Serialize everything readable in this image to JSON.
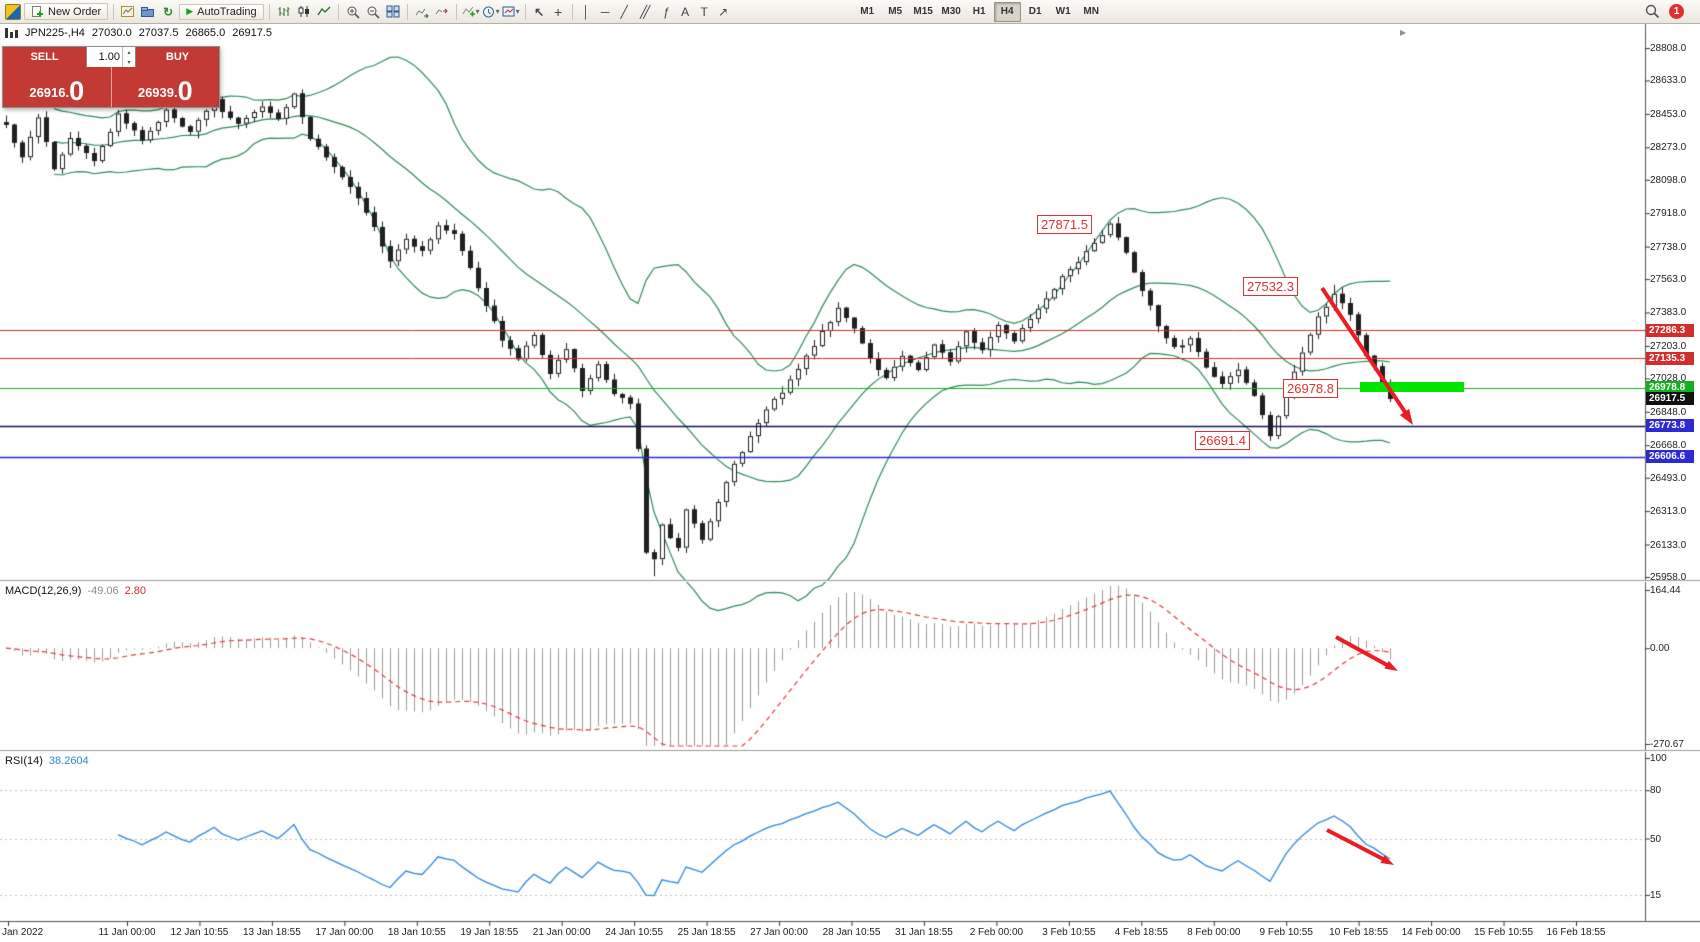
{
  "toolbar": {
    "new_order": "New Order",
    "autotrading": "AutoTrading",
    "timeframes": [
      "M1",
      "M5",
      "M15",
      "M30",
      "H1",
      "H4",
      "D1",
      "W1",
      "MN"
    ],
    "active_timeframe": "H4",
    "notification_count": "1"
  },
  "icons": {
    "play": "▶",
    "dropdown": "▾",
    "cursor": "↖",
    "crosshair": "+",
    "vertical_line": "│",
    "horizontal_line": "─",
    "trendline": "╱",
    "channel": "╱╱",
    "fibonacci": "ƒ",
    "text": "A",
    "label": "T",
    "arrows": "↗",
    "refresh": "↻",
    "scroll_marker": "▸",
    "spin_up": "▴",
    "spin_down": "▾"
  },
  "chart_header": {
    "symbol_period": "JPN225-,H4",
    "open": "27030.0",
    "high": "27037.5",
    "low": "26865.0",
    "close": "26917.5"
  },
  "trade_panel": {
    "sell_label": "SELL",
    "buy_label": "BUY",
    "lot": "1.00",
    "sell_price": "26916.",
    "sell_price_big": "0",
    "buy_price": "26939.",
    "buy_price_big": "0"
  },
  "price_axis_labels": [
    "28808.0",
    "28633.0",
    "28453.0",
    "28273.0",
    "28098.0",
    "27918.0",
    "27738.0",
    "27563.0",
    "27383.0",
    "27203.0",
    "27028.0",
    "26848.0",
    "26668.0",
    "26493.0",
    "26313.0",
    "26133.0",
    "25958.0"
  ],
  "price_tags": [
    {
      "text": "27286.3",
      "price": 27286.3,
      "bg": "#d22e2e"
    },
    {
      "text": "27135.3",
      "price": 27135.3,
      "bg": "#d22e2e"
    },
    {
      "text": "26978.8",
      "price": 26978.8,
      "bg": "#13b01e"
    },
    {
      "text": "26917.5",
      "price": 26917.5,
      "bg": "#111111"
    },
    {
      "text": "26773.8",
      "price": 26773.8,
      "bg": "#2b2bd0"
    },
    {
      "text": "26606.6",
      "price": 26606.6,
      "bg": "#2b2bd0"
    }
  ],
  "h_lines": [
    {
      "price": 27286.3,
      "color": "#d22e2e",
      "w": 1
    },
    {
      "price": 27135.3,
      "color": "#d22e2e",
      "w": 1
    },
    {
      "price": 26978.8,
      "color": "#13b01e",
      "w": 1.2
    },
    {
      "price": 26773.8,
      "color": "#15154f",
      "w": 1.6
    },
    {
      "price": 26606.6,
      "color": "#2b2bd0",
      "w": 1.6
    }
  ],
  "annotations": [
    {
      "text": "27871.5"
    },
    {
      "text": "27532.3"
    },
    {
      "text": "26978.8"
    },
    {
      "text": "26691.4"
    }
  ],
  "macd_panel": {
    "name": "MACD(12,26,9)",
    "main": "-49.06",
    "signal": "2.80",
    "scale": [
      "164.44",
      "0.00",
      "-270.67"
    ]
  },
  "rsi_panel": {
    "name": "RSI(14)",
    "value": "38.2604",
    "scale": [
      "100",
      "80",
      "50",
      "15"
    ],
    "levels": [
      80,
      50,
      15
    ]
  },
  "time_labels": [
    "Jan 2022",
    "11 Jan 00:00",
    "12 Jan 10:55",
    "13 Jan 18:55",
    "17 Jan 00:00",
    "18 Jan 10:55",
    "19 Jan 18:55",
    "21 Jan 00:00",
    "24 Jan 10:55",
    "25 Jan 18:55",
    "27 Jan 00:00",
    "28 Jan 10:55",
    "31 Jan 18:55",
    "2 Feb 00:00",
    "3 Feb 10:55",
    "4 Feb 18:55",
    "8 Feb 00:00",
    "9 Feb 10:55",
    "10 Feb 18:55",
    "14 Feb 00:00",
    "15 Feb 10:55",
    "16 Feb 18:55"
  ],
  "chart_data": {
    "type": "candlestick",
    "symbol": "JPN225-",
    "period": "H4",
    "ohlc_display": {
      "open": 27030.0,
      "high": 27037.5,
      "low": 26865.0,
      "close": 26917.5
    },
    "y_range": [
      25958.0,
      28808.0
    ],
    "bollinger": {
      "period": 20,
      "deviation": 2
    },
    "indicators": {
      "macd": {
        "fast": 12,
        "slow": 26,
        "signal": 9,
        "main": -49.06,
        "signal_value": 2.8,
        "scale_max": 164.44,
        "scale_min": -270.67
      },
      "rsi": {
        "period": 14,
        "value": 38.2604
      }
    },
    "key_points": {
      "swing_high": 27871.5,
      "lower_high": 27532.3,
      "support": 26978.8,
      "swing_low": 26691.4,
      "crash_low": 25958.0
    },
    "anchors": [
      [
        0,
        28390
      ],
      [
        2,
        28210
      ],
      [
        4,
        28430
      ],
      [
        6,
        28150
      ],
      [
        8,
        28320
      ],
      [
        11,
        28200
      ],
      [
        14,
        28445
      ],
      [
        17,
        28310
      ],
      [
        20,
        28470
      ],
      [
        23,
        28360
      ],
      [
        26,
        28520
      ],
      [
        29,
        28390
      ],
      [
        32,
        28490
      ],
      [
        34,
        28430
      ],
      [
        36,
        28560
      ],
      [
        38,
        28330
      ],
      [
        41,
        28170
      ],
      [
        44,
        28010
      ],
      [
        46,
        27840
      ],
      [
        48,
        27650
      ],
      [
        50,
        27790
      ],
      [
        52,
        27710
      ],
      [
        54,
        27860
      ],
      [
        56,
        27800
      ],
      [
        58,
        27620
      ],
      [
        60,
        27420
      ],
      [
        62,
        27240
      ],
      [
        64,
        27140
      ],
      [
        66,
        27260
      ],
      [
        68,
        27060
      ],
      [
        70,
        27190
      ],
      [
        72,
        26970
      ],
      [
        74,
        27100
      ],
      [
        76,
        26950
      ],
      [
        78,
        26880
      ],
      [
        79,
        26650
      ],
      [
        80,
        26100
      ],
      [
        81,
        26050
      ],
      [
        82,
        26230
      ],
      [
        84,
        26110
      ],
      [
        85,
        26310
      ],
      [
        87,
        26160
      ],
      [
        89,
        26360
      ],
      [
        91,
        26560
      ],
      [
        93,
        26710
      ],
      [
        95,
        26860
      ],
      [
        97,
        26960
      ],
      [
        99,
        27090
      ],
      [
        101,
        27210
      ],
      [
        103,
        27340
      ],
      [
        104,
        27400
      ],
      [
        106,
        27290
      ],
      [
        108,
        27130
      ],
      [
        110,
        27020
      ],
      [
        112,
        27160
      ],
      [
        114,
        27070
      ],
      [
        116,
        27210
      ],
      [
        118,
        27130
      ],
      [
        120,
        27270
      ],
      [
        122,
        27190
      ],
      [
        124,
        27310
      ],
      [
        126,
        27230
      ],
      [
        128,
        27360
      ],
      [
        130,
        27460
      ],
      [
        132,
        27570
      ],
      [
        134,
        27660
      ],
      [
        136,
        27770
      ],
      [
        138,
        27850
      ],
      [
        140,
        27710
      ],
      [
        142,
        27510
      ],
      [
        144,
        27310
      ],
      [
        146,
        27190
      ],
      [
        148,
        27240
      ],
      [
        150,
        27090
      ],
      [
        152,
        26990
      ],
      [
        154,
        27070
      ],
      [
        156,
        26930
      ],
      [
        158,
        26710
      ],
      [
        160,
        26960
      ],
      [
        162,
        27160
      ],
      [
        164,
        27360
      ],
      [
        166,
        27490
      ],
      [
        168,
        27360
      ],
      [
        170,
        27160
      ],
      [
        172,
        27010
      ],
      [
        173,
        26917.5
      ]
    ]
  }
}
